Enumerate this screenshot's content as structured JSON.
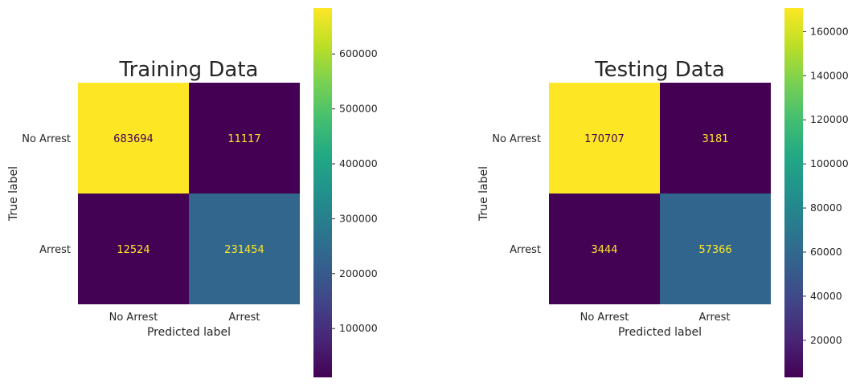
{
  "chart_data": [
    {
      "type": "heatmap",
      "title": "Training Data",
      "xlabel": "Predicted label",
      "ylabel": "True label",
      "x_categories": [
        "No Arrest",
        "Arrest"
      ],
      "y_categories": [
        "No Arrest",
        "Arrest"
      ],
      "values": [
        [
          683694,
          11117
        ],
        [
          12524,
          231454
        ]
      ],
      "colormap": "viridis",
      "colorbar": {
        "range": [
          11117,
          683694
        ],
        "ticks": [
          100000,
          200000,
          300000,
          400000,
          500000,
          600000
        ]
      },
      "grid": false
    },
    {
      "type": "heatmap",
      "title": "Testing Data",
      "xlabel": "Predicted label",
      "ylabel": "True label",
      "x_categories": [
        "No Arrest",
        "Arrest"
      ],
      "y_categories": [
        "No Arrest",
        "Arrest"
      ],
      "values": [
        [
          170707,
          3181
        ],
        [
          3444,
          57366
        ]
      ],
      "colormap": "viridis",
      "colorbar": {
        "range": [
          3181,
          170707
        ],
        "ticks": [
          20000,
          40000,
          60000,
          80000,
          100000,
          120000,
          140000,
          160000
        ]
      },
      "grid": false
    }
  ],
  "colors": {
    "light_text": "#fde725",
    "dark_text": "#440154"
  }
}
